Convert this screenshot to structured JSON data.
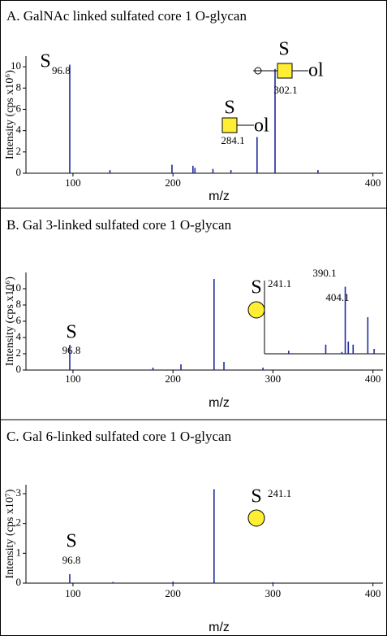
{
  "chart_data": [
    {
      "type": "spectrum",
      "title": "A. GalNAc linked sulfated core 1 O-glycan",
      "xlabel": "m/z",
      "ylabel": "Intensity (cps x10⁶)",
      "x": [
        96.8,
        137,
        199,
        220,
        222,
        240,
        258,
        284.1,
        302.1,
        345
      ],
      "values": [
        10.2,
        0.3,
        0.8,
        0.7,
        0.5,
        0.4,
        0.3,
        3.4,
        9.8,
        0.3
      ],
      "color": "#1f2a9c",
      "xlim": [
        53,
        410
      ],
      "ylim": [
        0,
        11
      ],
      "xticks": [
        100,
        200,
        400
      ],
      "yticks": [
        0,
        2,
        4,
        6,
        8,
        10
      ],
      "annotations": [
        "S",
        "96.8",
        "S",
        "ol",
        "302.1",
        "S",
        "ol",
        "284.1"
      ]
    },
    {
      "type": "spectrum",
      "title": "B. Gal 3-linked sulfated core 1 O-glycan",
      "xlabel": "m/z",
      "ylabel": "Intensity (cps x10⁶)",
      "x": [
        96.8,
        180,
        208,
        241.1,
        251,
        290
      ],
      "values": [
        3.1,
        0.3,
        0.7,
        11.2,
        1.0,
        0.3
      ],
      "color": "#1f2a9c",
      "xlim": [
        53,
        410
      ],
      "ylim": [
        0,
        12
      ],
      "xticks": [
        100,
        200,
        300,
        400
      ],
      "yticks": [
        0,
        2,
        4,
        6,
        8,
        10
      ],
      "annotations": [
        "S",
        "241.1",
        "S",
        "96.8",
        "390.1",
        "404.1"
      ],
      "inset": {
        "x": [
          355,
          378,
          388,
          390.1,
          392,
          395,
          404.1,
          408
        ],
        "values": [
          0.5,
          1.5,
          0.3,
          11,
          2,
          1.5,
          6,
          0.8
        ],
        "xlim": [
          340,
          415
        ],
        "ylim": [
          0,
          12
        ]
      }
    },
    {
      "type": "spectrum",
      "title": "C. Gal 6-linked sulfated core 1 O-glycan",
      "xlabel": "m/z",
      "ylabel": "Intensity (cps x10⁷)",
      "x": [
        96.8,
        140,
        200,
        241.1,
        300
      ],
      "values": [
        0.3,
        0.04,
        0.05,
        3.15,
        0.03
      ],
      "color": "#1f2a9c",
      "xlim": [
        53,
        410
      ],
      "ylim": [
        0,
        3.3
      ],
      "xticks": [
        100,
        200,
        300,
        400
      ],
      "yticks": [
        0,
        1,
        2,
        3
      ],
      "annotations": [
        "S",
        "241.1",
        "S",
        "96.8"
      ]
    }
  ]
}
